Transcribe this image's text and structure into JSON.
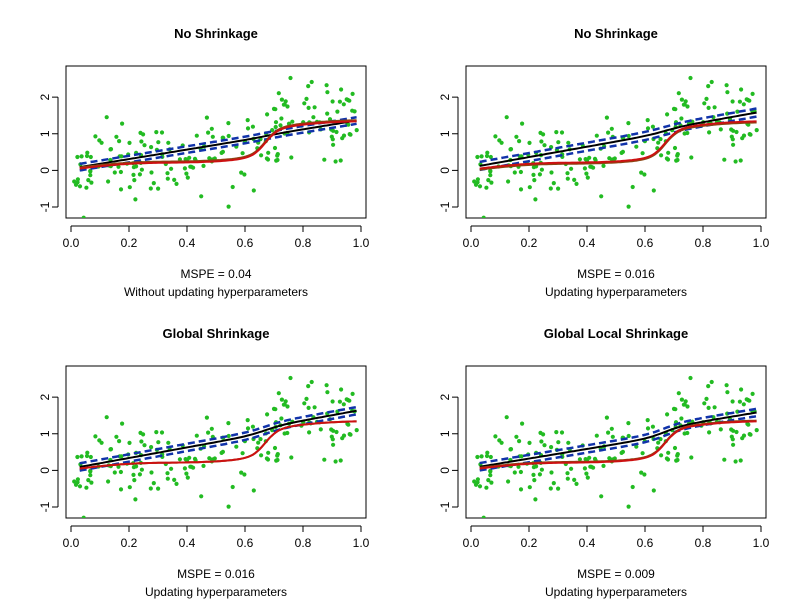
{
  "colors": {
    "points": "#22bb22",
    "red_curve": "#cc1111",
    "black_curve": "#000000",
    "blue_band": "#1133aa",
    "brown_curve": "#8b4513"
  },
  "chart_data": [
    {
      "type": "scatter",
      "title": "No Shrinkage",
      "xlabel": "MSPE =  0.04",
      "sublabel": "Without updating hyperparameters",
      "xlim": [
        0.0,
        1.0
      ],
      "ylim": [
        -1.3,
        2.85
      ],
      "xticks": [
        "0.0",
        "0.2",
        "0.4",
        "0.6",
        "0.8",
        "1.0"
      ],
      "yticks": [
        "-1",
        "0",
        "1",
        "2"
      ],
      "fit": {
        "start": 0.05,
        "end": 1.38,
        "curve": 0.1,
        "band": 0.09,
        "brown": 0.03
      }
    },
    {
      "type": "scatter",
      "title": "No Shrinkage",
      "xlabel": "MSPE =  0.016",
      "sublabel": "Updating hyperparameters",
      "xlim": [
        0.0,
        1.0
      ],
      "ylim": [
        -1.3,
        2.85
      ],
      "xticks": [
        "0.0",
        "0.2",
        "0.4",
        "0.6",
        "0.8",
        "1.0"
      ],
      "yticks": [
        "-1",
        "0",
        "1",
        "2"
      ],
      "fit": {
        "start": 0.08,
        "end": 1.6,
        "curve": 0.3,
        "band": 0.11,
        "brown": -0.03
      }
    },
    {
      "type": "scatter",
      "title": "Global Shrinkage",
      "xlabel": "MSPE =  0.016",
      "sublabel": "Updating hyperparameters",
      "xlim": [
        0.0,
        1.0
      ],
      "ylim": [
        -1.3,
        2.85
      ],
      "xticks": [
        "0.0",
        "0.2",
        "0.4",
        "0.6",
        "0.8",
        "1.0"
      ],
      "yticks": [
        "-1",
        "0",
        "1",
        "2"
      ],
      "fit": {
        "start": 0.05,
        "end": 1.65,
        "curve": 0.45,
        "band": 0.1,
        "brown": 0.0
      }
    },
    {
      "type": "scatter",
      "title": "Global Local Shrinkage",
      "xlabel": "MSPE =  0.009",
      "sublabel": "Updating hyperparameters",
      "xlim": [
        0.0,
        1.0
      ],
      "ylim": [
        -1.3,
        2.85
      ],
      "xticks": [
        "0.0",
        "0.2",
        "0.4",
        "0.6",
        "0.8",
        "1.0"
      ],
      "yticks": [
        "-1",
        "0",
        "1",
        "2"
      ],
      "fit": {
        "start": 0.06,
        "end": 1.6,
        "curve": 0.65,
        "band": 0.1,
        "brown": 0.02
      }
    }
  ]
}
